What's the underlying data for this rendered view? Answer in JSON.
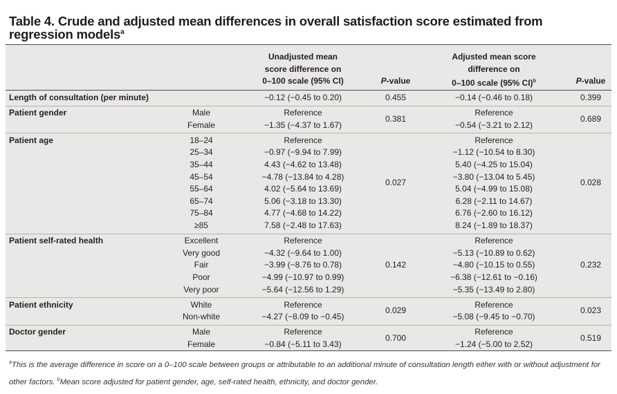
{
  "title": "Table 4. Crude and adjusted mean differences in overall satisfaction score estimated from regression models",
  "title_sup": "a",
  "header": {
    "unadjusted": [
      "Unadjusted mean",
      "score difference on",
      "0–100 scale (95% CI)"
    ],
    "p1_italic": "P",
    "p1_rest": "-value",
    "adjusted": [
      "Adjusted mean score",
      "difference on",
      "0–100 scale (95% CI)"
    ],
    "adjusted_sup": "b",
    "p2_italic": "P",
    "p2_rest": "-value"
  },
  "rows": [
    {
      "label": "Length of consultation (per minute)",
      "subs": [
        {
          "cat": "",
          "unadj": "−0.12 (−0.45 to 0.20)",
          "adj": "−0.14 (−0.46 to 0.18)"
        }
      ],
      "p_unadj": "0.455",
      "p_adj": "0.399"
    },
    {
      "label": "Patient gender",
      "subs": [
        {
          "cat": "Male",
          "unadj": "Reference",
          "adj": "Reference"
        },
        {
          "cat": "Female",
          "unadj": "−1.35 (−4.37 to 1.67)",
          "adj": "−0.54 (−3.21 to 2.12)"
        }
      ],
      "p_unadj": "0.381",
      "p_adj": "0.689"
    },
    {
      "label": "Patient age",
      "subs": [
        {
          "cat": "18–24",
          "unadj": "Reference",
          "adj": "Reference"
        },
        {
          "cat": "25–34",
          "unadj": "−0.97 (−9.94 to 7.99)",
          "adj": "−1.12 (−10.54 to 8.30)"
        },
        {
          "cat": "35–44",
          "unadj": "4.43 (−4.62 to 13.48)",
          "adj": "5.40 (−4.25 to 15.04)"
        },
        {
          "cat": "45–54",
          "unadj": "−4.78 (−13.84 to 4.28)",
          "adj": "−3.80 (−13.04 to 5.45)"
        },
        {
          "cat": "55–64",
          "unadj": "4.02 (−5.64 to 13.69)",
          "adj": "5.04 (−4.99 to 15.08)"
        },
        {
          "cat": "65–74",
          "unadj": "5.06 (−3.18 to 13.30)",
          "adj": "6.28 (−2.11 to 14.67)"
        },
        {
          "cat": "75–84",
          "unadj": "4.77 (−4.68 to 14.22)",
          "adj": "6.76 (−2.60 to 16.12)"
        },
        {
          "cat": "≥85",
          "unadj": "7.58 (−2.48 to 17.63)",
          "adj": "8.24 (−1.89 to 18.37)"
        }
      ],
      "p_unadj": "0.027",
      "p_adj": "0.028"
    },
    {
      "label": "Patient self-rated health",
      "subs": [
        {
          "cat": "Excellent",
          "unadj": "Reference",
          "adj": "Reference"
        },
        {
          "cat": "Very good",
          "unadj": "−4.32 (−9.64 to 1.00)",
          "adj": "−5.13 (−10.89 to 0.62)"
        },
        {
          "cat": "Fair",
          "unadj": "−3.99 (−8.76 to 0.78)",
          "adj": "−4.80 (−10.15 to 0.55)"
        },
        {
          "cat": "Poor",
          "unadj": "−4.99 (−10.97 to 0.99)",
          "adj": "−6.38 (−12.61 to −0.16)"
        },
        {
          "cat": "Very poor",
          "unadj": "−5.64 (−12.56 to 1.29)",
          "adj": "−5.35 (−13.49 to 2.80)"
        }
      ],
      "p_unadj": "0.142",
      "p_adj": "0.232"
    },
    {
      "label": "Patient ethnicity",
      "subs": [
        {
          "cat": "White",
          "unadj": "Reference",
          "adj": "Reference"
        },
        {
          "cat": "Non-white",
          "unadj": "−4.27 (−8.09 to −0.45)",
          "adj": "−5.08 (−9.45 to −0.70)"
        }
      ],
      "p_unadj": "0.029",
      "p_adj": "0.023"
    },
    {
      "label": "Doctor gender",
      "subs": [
        {
          "cat": "Male",
          "unadj": "Reference",
          "adj": "Reference"
        },
        {
          "cat": "Female",
          "unadj": "−0.84 (−5.11 to 3.43)",
          "adj": "−1.24 (−5.00 to 2.52)"
        }
      ],
      "p_unadj": "0.700",
      "p_adj": "0.519"
    }
  ],
  "footnote_a_sup": "a",
  "footnote_a": "This is the average difference in score on a 0–100 scale between groups or attributable to an additional minute of consultation length either with or without adjustment for other factors.",
  "footnote_b_sup": "b",
  "footnote_b": "Mean score adjusted for patient gender, age, self-rated health, ethnicity, and doctor gender."
}
